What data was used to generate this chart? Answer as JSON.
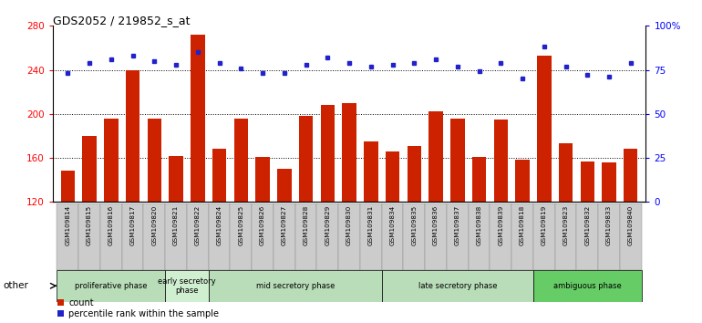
{
  "title": "GDS2052 / 219852_s_at",
  "samples": [
    "GSM109814",
    "GSM109815",
    "GSM109816",
    "GSM109817",
    "GSM109820",
    "GSM109821",
    "GSM109822",
    "GSM109824",
    "GSM109825",
    "GSM109826",
    "GSM109827",
    "GSM109828",
    "GSM109829",
    "GSM109830",
    "GSM109831",
    "GSM109834",
    "GSM109835",
    "GSM109836",
    "GSM109837",
    "GSM109838",
    "GSM109839",
    "GSM109818",
    "GSM109819",
    "GSM109823",
    "GSM109832",
    "GSM109833",
    "GSM109840"
  ],
  "counts": [
    148,
    180,
    196,
    240,
    196,
    162,
    272,
    168,
    196,
    161,
    150,
    198,
    208,
    210,
    175,
    166,
    171,
    202,
    196,
    161,
    195,
    158,
    253,
    173,
    157,
    156,
    168
  ],
  "percentiles": [
    73,
    79,
    81,
    83,
    80,
    78,
    85,
    79,
    76,
    73,
    73,
    78,
    82,
    79,
    77,
    78,
    79,
    81,
    77,
    74,
    79,
    70,
    88,
    77,
    72,
    71,
    79
  ],
  "phases": [
    {
      "name": "proliferative phase",
      "start": 0,
      "end": 5
    },
    {
      "name": "early secretory\nphase",
      "start": 5,
      "end": 7
    },
    {
      "name": "mid secretory phase",
      "start": 7,
      "end": 15
    },
    {
      "name": "late secretory phase",
      "start": 15,
      "end": 22
    },
    {
      "name": "ambiguous phase",
      "start": 22,
      "end": 27
    }
  ],
  "phase_colors": [
    "#b8ddb8",
    "#d0eed0",
    "#b8ddb8",
    "#b8ddb8",
    "#66cc66"
  ],
  "bar_color": "#cc2200",
  "dot_color": "#2222cc",
  "ylim_left": [
    120,
    280
  ],
  "ylim_right": [
    0,
    100
  ],
  "yticks_left": [
    120,
    160,
    200,
    240,
    280
  ],
  "yticks_right": [
    0,
    25,
    50,
    75,
    100
  ],
  "yticklabels_right": [
    "0",
    "25",
    "50",
    "75",
    "100%"
  ],
  "grid_lines": [
    160,
    200,
    240
  ]
}
